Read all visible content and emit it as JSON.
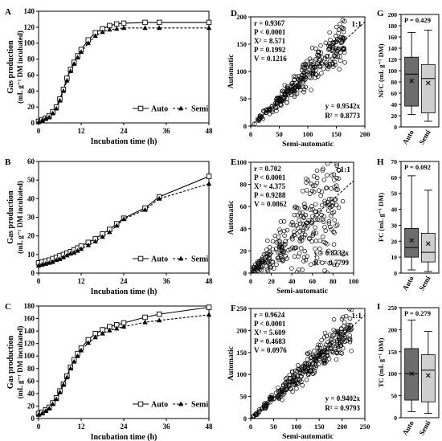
{
  "chart_data": [
    {
      "panel": "A",
      "type": "line",
      "xlabel": "Incubation time (h)",
      "ylabel_line1": "Gas production",
      "ylabel_line2": "(mL g⁻¹ DM incubated)",
      "xlim": [
        0,
        48
      ],
      "ylim": [
        0,
        140
      ],
      "xticks": [
        0,
        12,
        24,
        36,
        48
      ],
      "yticks": [
        0,
        20,
        40,
        60,
        80,
        100,
        120,
        140
      ],
      "legend": "bottom-right",
      "series": [
        {
          "name": "Auto",
          "marker": "open-square",
          "dash": false,
          "x": [
            0,
            1,
            2,
            3,
            4,
            5,
            6,
            7,
            8,
            9,
            10,
            11,
            12,
            14,
            16,
            18,
            20,
            22,
            24,
            30,
            34,
            48
          ],
          "y": [
            2,
            4,
            6,
            9,
            14,
            20,
            30,
            42,
            56,
            67,
            76,
            84,
            92,
            104,
            113,
            118,
            122,
            124,
            125,
            126,
            126,
            126
          ]
        },
        {
          "name": "Semi",
          "marker": "filled-triangle",
          "dash": true,
          "x": [
            0,
            1,
            2,
            3,
            4,
            5,
            6,
            7,
            8,
            9,
            10,
            11,
            12,
            14,
            16,
            18,
            20,
            22,
            24,
            30,
            34,
            48
          ],
          "y": [
            1,
            3,
            5,
            7,
            12,
            18,
            28,
            40,
            53,
            65,
            74,
            82,
            89,
            100,
            109,
            114,
            117,
            118,
            119,
            119,
            119,
            119
          ]
        }
      ]
    },
    {
      "panel": "B",
      "type": "line",
      "xlabel": "Incubation time (h)",
      "ylabel_line1": "Gas production",
      "ylabel_line2": "(mL g⁻¹ DM incubated)",
      "xlim": [
        0,
        48
      ],
      "ylim": [
        0,
        60
      ],
      "xticks": [
        0,
        12,
        24,
        36,
        48
      ],
      "yticks": [
        0,
        10,
        20,
        30,
        40,
        50,
        60
      ],
      "legend": "bottom-right",
      "series": [
        {
          "name": "Auto",
          "marker": "open-square",
          "dash": false,
          "x": [
            0,
            1,
            2,
            3,
            4,
            5,
            6,
            7,
            8,
            9,
            10,
            11,
            12,
            14,
            16,
            18,
            20,
            22,
            24,
            30,
            34,
            48
          ],
          "y": [
            5.5,
            6,
            6.5,
            7,
            7.8,
            8.5,
            9.3,
            10,
            10.8,
            11.5,
            12.5,
            13.5,
            14.5,
            16.5,
            18.5,
            21,
            23.5,
            26.5,
            29.5,
            35,
            41,
            52
          ]
        },
        {
          "name": "Semi",
          "marker": "filled-triangle",
          "dash": true,
          "x": [
            0,
            1,
            2,
            3,
            4,
            5,
            6,
            7,
            8,
            9,
            10,
            11,
            12,
            14,
            16,
            18,
            20,
            22,
            24,
            30,
            34,
            48
          ],
          "y": [
            4,
            4.5,
            5,
            5.5,
            6,
            7,
            7.5,
            8.5,
            9.5,
            10.5,
            11,
            12,
            13,
            15,
            17,
            19.5,
            22,
            25.5,
            29,
            34,
            40,
            48
          ]
        }
      ]
    },
    {
      "panel": "C",
      "type": "line",
      "xlabel": "Incubation time (h)",
      "ylabel_line1": "Gas production",
      "ylabel_line2": "(mL g⁻¹ DM incubated)",
      "xlim": [
        0,
        48
      ],
      "ylim": [
        0,
        180
      ],
      "xticks": [
        0,
        12,
        24,
        36,
        48
      ],
      "yticks": [
        0,
        20,
        40,
        60,
        80,
        100,
        120,
        140,
        160,
        180
      ],
      "legend": "bottom-right",
      "series": [
        {
          "name": "Auto",
          "marker": "open-square",
          "dash": false,
          "x": [
            0,
            1,
            2,
            3,
            4,
            5,
            6,
            7,
            8,
            9,
            10,
            11,
            12,
            14,
            16,
            18,
            20,
            22,
            24,
            30,
            34,
            48
          ],
          "y": [
            8,
            10,
            14,
            18,
            25,
            33,
            44,
            55,
            68,
            82,
            94,
            104,
            113,
            126,
            136,
            142,
            147,
            150,
            153,
            162,
            167,
            178
          ]
        },
        {
          "name": "Semi",
          "marker": "filled-triangle",
          "dash": true,
          "x": [
            0,
            1,
            2,
            3,
            4,
            5,
            6,
            7,
            8,
            9,
            10,
            11,
            12,
            14,
            16,
            18,
            20,
            22,
            24,
            30,
            34,
            48
          ],
          "y": [
            6,
            8,
            12,
            16,
            23,
            31,
            42,
            54,
            66,
            80,
            91,
            100,
            109,
            121,
            130,
            136,
            141,
            144,
            147,
            154,
            157,
            166
          ]
        }
      ]
    },
    {
      "panel": "D",
      "type": "scatter",
      "xlabel": "Semi-automatic",
      "ylabel": "Automatic",
      "xlim": [
        0,
        200
      ],
      "ylim": [
        0,
        200
      ],
      "xticks": [
        0,
        50,
        100,
        150,
        200
      ],
      "yticks": [
        0,
        50,
        100,
        150,
        200
      ],
      "ratio_label": "1:1",
      "stats": [
        "r = 0.9367",
        "P < 0.0001",
        "X² = 8.571",
        "P = 0.1992",
        "V = 0.1216"
      ],
      "fit": {
        "slope": 0.9542,
        "eq": "y = 0.9542x",
        "r2": "R² = 0.8773"
      },
      "seed": 11,
      "n": 300,
      "xmin": 5,
      "xmax": 165,
      "noise": 0.14
    },
    {
      "panel": "E",
      "type": "scatter",
      "xlabel": "Semi-automatic",
      "ylabel": "Automatic",
      "xlim": [
        0,
        100
      ],
      "ylim": [
        0,
        100
      ],
      "xticks": [
        0,
        20,
        40,
        60,
        80,
        100
      ],
      "yticks": [
        0,
        20,
        40,
        60,
        80,
        100
      ],
      "ratio_label": "1:1",
      "stats": [
        "r = 0.702",
        "P < 0.0001",
        "X² = 4.375",
        "P = 0.9288",
        "V = 0.0862"
      ],
      "fit": {
        "slope": 0.8332,
        "eq": "y = 0.8332x",
        "r2": "R² = 0.7799"
      },
      "seed": 23,
      "n": 300,
      "xmin": 1,
      "xmax": 90,
      "noise": 0.45
    },
    {
      "panel": "F",
      "type": "scatter",
      "xlabel": "Semi-automatic",
      "ylabel": "Automatic",
      "xlim": [
        0,
        250
      ],
      "ylim": [
        0,
        250
      ],
      "xticks": [
        0,
        50,
        100,
        150,
        200,
        250
      ],
      "yticks": [
        0,
        50,
        100,
        150,
        200,
        250
      ],
      "ratio_label": "1:1",
      "stats": [
        "r = 0.9624",
        "P < 0.0001",
        "X² = 5.609",
        "P = 0.4683",
        "V = 0.0976"
      ],
      "fit": {
        "slope": 0.9402,
        "eq": "y = 0.9402x",
        "r2": "R² = 0.9793"
      },
      "seed": 37,
      "n": 320,
      "xmin": 3,
      "xmax": 222,
      "noise": 0.12
    },
    {
      "panel": "G",
      "type": "box",
      "ylabel": "NFC (mL g⁻¹ DM)",
      "p_label": "P = 0.429",
      "ylim": [
        0,
        200
      ],
      "yticks": [
        0,
        20,
        40,
        60,
        80,
        100,
        120,
        140,
        160,
        180,
        200
      ],
      "categories": [
        "Auto",
        "Semi"
      ],
      "boxes": [
        {
          "min": 22,
          "q1": 37,
          "median": 94,
          "q3": 124,
          "max": 168,
          "mean": 82,
          "color": "#6d6d6d"
        },
        {
          "min": 10,
          "q1": 25,
          "median": 86,
          "q3": 111,
          "max": 172,
          "mean": 78,
          "color": "#cfcfcf"
        }
      ]
    },
    {
      "panel": "H",
      "type": "box",
      "ylabel": "FC (mL g⁻¹ DM)",
      "p_label": "P = 0.092",
      "ylim": [
        0,
        70
      ],
      "yticks": [
        0,
        10,
        20,
        30,
        40,
        50,
        60,
        70
      ],
      "categories": [
        "Auto",
        "Semi"
      ],
      "boxes": [
        {
          "min": 2,
          "q1": 10,
          "median": 16,
          "q3": 28,
          "max": 61,
          "mean": 20.5,
          "color": "#6d6d6d"
        },
        {
          "min": 1,
          "q1": 7,
          "median": 13,
          "q3": 25,
          "max": 52,
          "mean": 18.5,
          "color": "#cfcfcf"
        }
      ]
    },
    {
      "panel": "I",
      "type": "box",
      "ylabel": "TC (mL g⁻¹ DM)",
      "p_label": "P = 0.279",
      "ylim": [
        0,
        250
      ],
      "yticks": [
        0,
        50,
        100,
        150,
        200,
        250
      ],
      "categories": [
        "Auto",
        "Semi"
      ],
      "boxes": [
        {
          "min": 14,
          "q1": 40,
          "median": 100,
          "q3": 157,
          "max": 222,
          "mean": 100,
          "color": "#6d6d6d"
        },
        {
          "min": 10,
          "q1": 36,
          "median": 108,
          "q3": 143,
          "max": 196,
          "mean": 96,
          "color": "#cfcfcf"
        }
      ]
    }
  ]
}
